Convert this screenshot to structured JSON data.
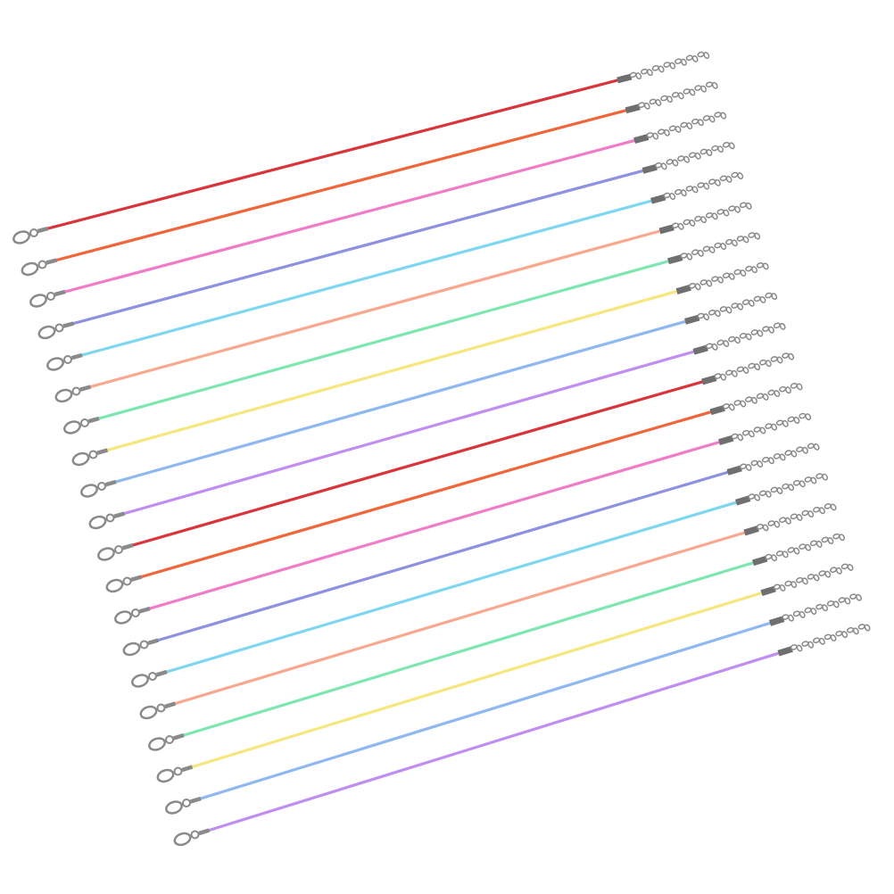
{
  "photo": {
    "subject": "cord-necklaces",
    "background": "#ffffff",
    "metal_color": "#8a8a8a",
    "cords": [
      {
        "color": "#d8343a"
      },
      {
        "color": "#f0663a"
      },
      {
        "color": "#f07cc8"
      },
      {
        "color": "#8e90e0"
      },
      {
        "color": "#7fd6f0"
      },
      {
        "color": "#f8a88e"
      },
      {
        "color": "#7ee6b0"
      },
      {
        "color": "#f6e67e"
      },
      {
        "color": "#8fb8f0"
      },
      {
        "color": "#c08ef0"
      },
      {
        "color": "#d8343a"
      },
      {
        "color": "#f0663a"
      },
      {
        "color": "#f07cc8"
      },
      {
        "color": "#8e90e0"
      },
      {
        "color": "#7fd6f0"
      },
      {
        "color": "#f8a88e"
      },
      {
        "color": "#7ee6b0"
      },
      {
        "color": "#f6e67e"
      },
      {
        "color": "#8fb8f0"
      },
      {
        "color": "#c08ef0"
      }
    ]
  }
}
